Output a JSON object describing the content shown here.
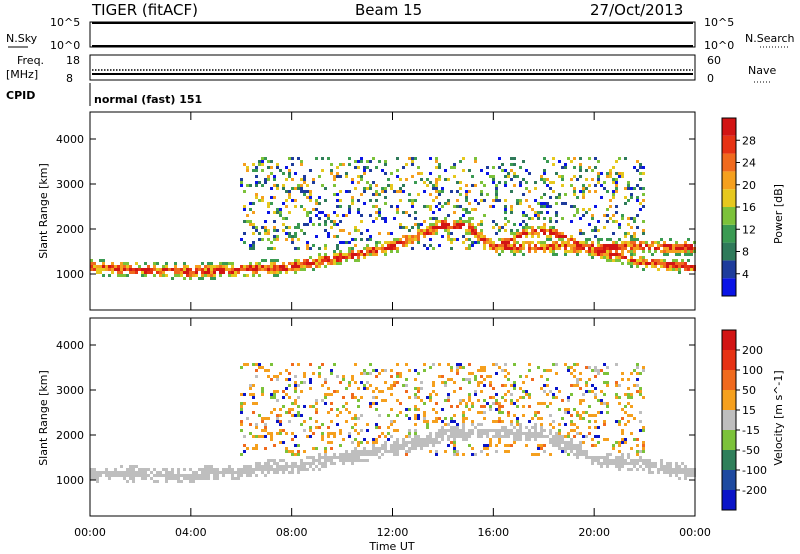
{
  "header": {
    "radar": "TIGER (fitACF)",
    "beam": "Beam 15",
    "date": "27/Oct/2013"
  },
  "strip_panels": {
    "nsky_label": "N.Sky",
    "nsearch_label": "N.Search",
    "noise_ticks_left": [
      "10^5",
      "10^0"
    ],
    "noise_ticks_right": [
      "10^5",
      "10^0"
    ],
    "freq_label": "Freq.",
    "freq_unit": "[MHz]",
    "freq_ticks": [
      "18",
      "8"
    ],
    "nave_label": "Nave",
    "nave_ticks": [
      "60",
      "0"
    ],
    "cpid_label": "CPID",
    "cpid_text": "normal (fast) 151"
  },
  "x_axis": {
    "label": "Time UT",
    "ticks": [
      "00:00",
      "04:00",
      "08:00",
      "12:00",
      "16:00",
      "20:00",
      "00:00"
    ]
  },
  "chart_data": [
    {
      "type": "heatmap",
      "panel": "power",
      "ylabel": "Slant Range [km]",
      "x_range_hours": [
        0,
        24
      ],
      "ylim": [
        200,
        4600
      ],
      "y_ticks": [
        1000,
        2000,
        3000,
        4000
      ],
      "colorbar_label": "Power [dB]",
      "colorbar_ticks": [
        4,
        8,
        12,
        16,
        20,
        24,
        28
      ],
      "colorbar_colors": [
        "#0a14e6",
        "#1e3c9c",
        "#2f7a5a",
        "#3a9a52",
        "#7cc23a",
        "#e6c81e",
        "#f5a01e",
        "#f06a1e",
        "#e63214",
        "#d21414"
      ],
      "features": [
        {
          "name": "main_band",
          "h": [
            0,
            4,
            8,
            12,
            14,
            15,
            16
          ],
          "range_km": [
            1150,
            1050,
            1150,
            1600,
            2100,
            2050,
            1600
          ]
        },
        {
          "name": "recovery_band",
          "h": [
            16,
            17.5,
            18.5,
            20,
            22,
            24
          ],
          "range_km": [
            1600,
            1950,
            1900,
            1500,
            1250,
            1150
          ]
        }
      ]
    },
    {
      "type": "heatmap",
      "panel": "velocity",
      "ylabel": "Slant Range [km]",
      "x_range_hours": [
        0,
        24
      ],
      "ylim": [
        200,
        4600
      ],
      "y_ticks": [
        1000,
        2000,
        3000,
        4000
      ],
      "colorbar_label": "Velocity [m s^-1]",
      "colorbar_ticks": [
        200,
        100,
        50,
        15,
        -15,
        -50,
        -100,
        -200
      ],
      "colorbar_colors": [
        "#0a14c8",
        "#1e4aa0",
        "#2f7f5a",
        "#7cc23a",
        "#bebebe",
        "#f5a01e",
        "#f06a1e",
        "#e63214",
        "#d21414"
      ],
      "features": [
        {
          "name": "ground_scatter_band",
          "h": [
            0,
            4,
            8,
            12,
            14,
            16,
            18,
            20,
            24
          ],
          "range_km": [
            1150,
            1100,
            1300,
            1700,
            2000,
            2100,
            2000,
            1500,
            1150
          ]
        }
      ]
    }
  ]
}
